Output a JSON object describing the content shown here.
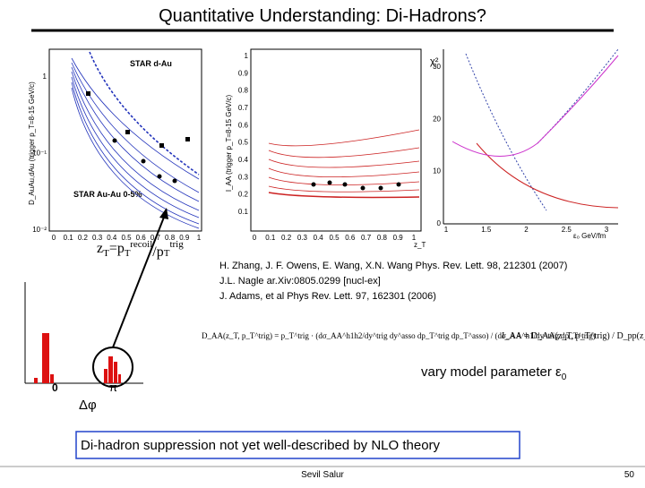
{
  "header": {
    "title": "Quantitative Understanding: Di-Hadrons?"
  },
  "plot_d": {
    "y_label": "D_AuAu,dAu (trigger p_T=8-15 GeV/c)",
    "legend_top": "STAR d-Au",
    "legend_bottom": "STAR Au-Au 0-5%",
    "y_ticks": [
      "1",
      "10⁻¹",
      "10⁻²"
    ],
    "x_ticks": [
      "0",
      "0.1",
      "0.2",
      "0.3",
      "0.4",
      "0.5",
      "0.6",
      "0.7",
      "0.8",
      "0.9",
      "1"
    ]
  },
  "zt_formula": [
    "z",
    "T",
    "=p",
    "T",
    "recoil",
    "/p",
    "T",
    "trig"
  ],
  "plot_i": {
    "y_label": "I_AA (trigger p_T=8-15 GeV/c)",
    "y_ticks": [
      "1",
      "0.9",
      "0.8",
      "0.7",
      "0.6",
      "0.5",
      "0.4",
      "0.3",
      "0.2",
      "0.1"
    ],
    "x_ticks": [
      "0",
      "0.1",
      "0.2",
      "0.3",
      "0.4",
      "0.5",
      "0.6",
      "0.7",
      "0.8",
      "0.9",
      "1"
    ],
    "x_label": "z_T"
  },
  "plot_chi": {
    "y_label": "χ²",
    "y_ticks": [
      "30",
      "20",
      "10",
      "0"
    ],
    "x_ticks": [
      "1",
      "1.5",
      "2",
      "2.5",
      "3"
    ],
    "x_label": "ε₀ GeV/fm"
  },
  "references": [
    "H. Zhang, J. F. Owens, E. Wang, X.N. Wang Phys. Rev. Lett. 98, 212301 (2007)",
    "J.L. Nagle ar.Xiv:0805.0299 [nucl-ex]",
    "J. Adams, et al Phys Rev. Lett. 97, 162301 (2006)"
  ],
  "formulas": [
    "D_AA(z_T, p_T^trig) = p_T^trig · (dσ_AA^h1h2/dy^trig dy^asso dp_T^trig dp_T^asso) / (dσ_AA^h1/dy^trig dp_T^trig)",
    "I_AA = D_AA(z_T, p_T^trig) / D_pp(z_T, p_T^trig)"
  ],
  "vary": [
    "vary model parameter ε",
    "0"
  ],
  "histogram": {
    "zero": "0",
    "pi": "π",
    "axis": "Δφ"
  },
  "conclusion": "Di-hadron suppression not yet well-described by NLO theory",
  "footer": {
    "author": "Sevil Salur",
    "page": "50"
  }
}
